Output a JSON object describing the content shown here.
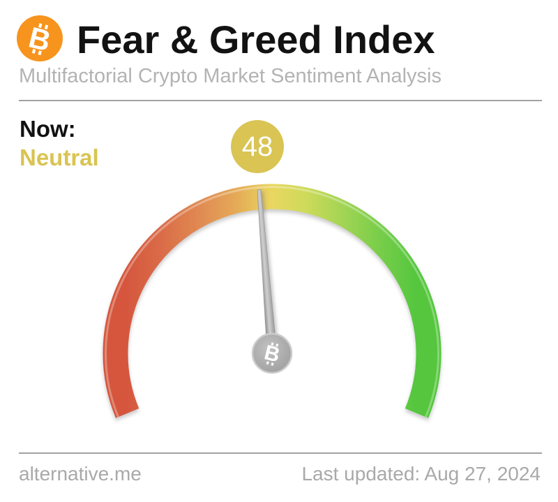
{
  "header": {
    "title": "Fear & Greed Index",
    "subtitle": "Multifactorial Crypto Market Sentiment Analysis",
    "logo_icon": "bitcoin-icon"
  },
  "status": {
    "label": "Now:",
    "value": "Neutral"
  },
  "gauge": {
    "badge_value": "48"
  },
  "chart_data": {
    "type": "gauge",
    "title": "Fear & Greed Index",
    "value": 48,
    "min": 0,
    "max": 100,
    "sentiment": "Neutral",
    "sweep_degrees": 225,
    "scale_gradient": [
      {
        "offset": "0%",
        "color": "#d5573e"
      },
      {
        "offset": "12%",
        "color": "#da6c48"
      },
      {
        "offset": "25%",
        "color": "#e08a52"
      },
      {
        "offset": "38%",
        "color": "#e5ab58"
      },
      {
        "offset": "50%",
        "color": "#e9d75f"
      },
      {
        "offset": "62%",
        "color": "#cdda5a"
      },
      {
        "offset": "75%",
        "color": "#a0d454"
      },
      {
        "offset": "88%",
        "color": "#75cd49"
      },
      {
        "offset": "100%",
        "color": "#54c63e"
      }
    ]
  },
  "colors": {
    "logo_orange": "#f7941d",
    "badge_yellow": "#d9c454",
    "neutral_text": "#d9c452",
    "needle_gray": "#b0b0b0"
  },
  "footer": {
    "source": "alternative.me",
    "last_updated": "Last updated: Aug 27, 2024"
  }
}
